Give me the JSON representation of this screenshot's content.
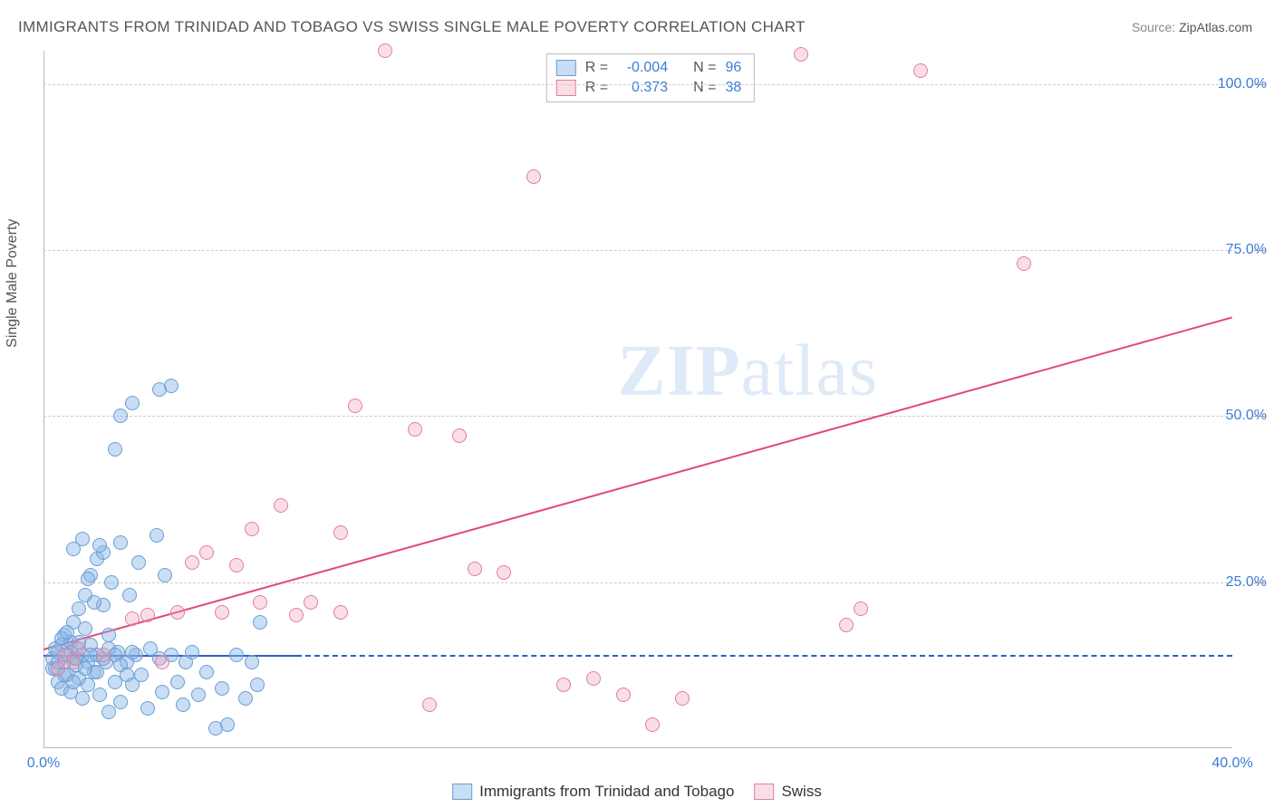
{
  "title": "IMMIGRANTS FROM TRINIDAD AND TOBAGO VS SWISS SINGLE MALE POVERTY CORRELATION CHART",
  "source_label": "Source: ",
  "source_value": "ZipAtlas.com",
  "ylabel": "Single Male Poverty",
  "watermark_a": "ZIP",
  "watermark_b": "atlas",
  "chart": {
    "type": "scatter",
    "xlim": [
      0,
      40
    ],
    "ylim": [
      0,
      105
    ],
    "y_gridlines": [
      25,
      50,
      75,
      100
    ],
    "y_tick_labels": [
      "25.0%",
      "50.0%",
      "75.0%",
      "100.0%"
    ],
    "x_ticks": [
      0,
      40
    ],
    "x_tick_labels": [
      "0.0%",
      "40.0%"
    ],
    "tick_label_color": "#3b7dd8",
    "grid_color": "#cccccc",
    "axis_color": "#bbbbbb",
    "background_color": "#ffffff"
  },
  "series": [
    {
      "name": "Immigrants from Trinidad and Tobago",
      "color_fill": "rgba(135,180,230,0.45)",
      "color_stroke": "#6a9fd4",
      "trend_color": "#2f5fbf",
      "r": "-0.004",
      "n": "96",
      "trend": {
        "x1": 0,
        "y1": 14.0,
        "x2": 8.5,
        "y2": 14.0,
        "dash_to_x": 40,
        "dash_y": 14.0
      },
      "points": [
        [
          0.3,
          13.5
        ],
        [
          0.4,
          12.0
        ],
        [
          0.5,
          14.5
        ],
        [
          0.5,
          10.0
        ],
        [
          0.6,
          15.5
        ],
        [
          0.6,
          9.0
        ],
        [
          0.7,
          13.0
        ],
        [
          0.7,
          17.0
        ],
        [
          0.8,
          14.0
        ],
        [
          0.8,
          11.0
        ],
        [
          0.9,
          16.0
        ],
        [
          0.9,
          8.5
        ],
        [
          1.0,
          13.5
        ],
        [
          1.0,
          19.0
        ],
        [
          1.1,
          12.5
        ],
        [
          1.1,
          15.0
        ],
        [
          1.2,
          10.5
        ],
        [
          1.2,
          21.0
        ],
        [
          1.3,
          14.0
        ],
        [
          1.3,
          7.5
        ],
        [
          1.4,
          18.0
        ],
        [
          1.4,
          23.0
        ],
        [
          1.5,
          13.0
        ],
        [
          1.5,
          9.5
        ],
        [
          1.6,
          26.0
        ],
        [
          1.6,
          15.5
        ],
        [
          1.7,
          11.5
        ],
        [
          1.8,
          28.5
        ],
        [
          1.8,
          14.0
        ],
        [
          1.9,
          8.0
        ],
        [
          2.0,
          29.5
        ],
        [
          2.0,
          21.5
        ],
        [
          2.1,
          13.0
        ],
        [
          2.2,
          5.5
        ],
        [
          2.2,
          17.0
        ],
        [
          2.3,
          25.0
        ],
        [
          2.4,
          10.0
        ],
        [
          2.5,
          14.5
        ],
        [
          2.6,
          31.0
        ],
        [
          2.6,
          7.0
        ],
        [
          2.8,
          13.0
        ],
        [
          2.9,
          23.0
        ],
        [
          3.0,
          9.5
        ],
        [
          3.1,
          14.0
        ],
        [
          3.2,
          28.0
        ],
        [
          3.3,
          11.0
        ],
        [
          3.5,
          6.0
        ],
        [
          3.6,
          15.0
        ],
        [
          3.8,
          32.0
        ],
        [
          3.9,
          13.5
        ],
        [
          4.0,
          8.5
        ],
        [
          4.1,
          26.0
        ],
        [
          4.3,
          14.0
        ],
        [
          2.4,
          45.0
        ],
        [
          2.6,
          50.0
        ],
        [
          3.0,
          52.0
        ],
        [
          3.9,
          54.0
        ],
        [
          4.5,
          10.0
        ],
        [
          4.7,
          6.5
        ],
        [
          4.8,
          13.0
        ],
        [
          5.0,
          14.5
        ],
        [
          5.2,
          8.0
        ],
        [
          5.5,
          11.5
        ],
        [
          5.8,
          3.0
        ],
        [
          6.0,
          9.0
        ],
        [
          6.2,
          3.5
        ],
        [
          6.5,
          14.0
        ],
        [
          6.8,
          7.5
        ],
        [
          7.0,
          13.0
        ],
        [
          7.2,
          9.5
        ],
        [
          7.3,
          19.0
        ],
        [
          4.3,
          54.5
        ],
        [
          1.0,
          30.0
        ],
        [
          1.3,
          31.5
        ],
        [
          1.5,
          25.5
        ],
        [
          1.7,
          22.0
        ],
        [
          1.9,
          30.5
        ],
        [
          0.4,
          15.0
        ],
        [
          0.3,
          12.0
        ],
        [
          0.5,
          13.0
        ],
        [
          0.6,
          16.5
        ],
        [
          0.7,
          11.0
        ],
        [
          0.8,
          17.5
        ],
        [
          0.9,
          14.5
        ],
        [
          1.0,
          10.0
        ],
        [
          1.1,
          13.5
        ],
        [
          1.2,
          16.0
        ],
        [
          1.4,
          12.0
        ],
        [
          1.6,
          14.0
        ],
        [
          1.8,
          11.5
        ],
        [
          2.0,
          13.5
        ],
        [
          2.2,
          15.0
        ],
        [
          2.4,
          14.0
        ],
        [
          2.6,
          12.5
        ],
        [
          2.8,
          11.0
        ],
        [
          3.0,
          14.5
        ]
      ]
    },
    {
      "name": "Swiss",
      "color_fill": "rgba(240,160,180,0.35)",
      "color_stroke": "#e07f9c",
      "trend_color": "#e24a78",
      "r": "0.373",
      "n": "38",
      "trend": {
        "x1": 0,
        "y1": 15.0,
        "x2": 40,
        "y2": 65.0
      },
      "points": [
        [
          0.5,
          12.0
        ],
        [
          0.7,
          14.0
        ],
        [
          1.0,
          13.0
        ],
        [
          1.2,
          15.0
        ],
        [
          2.0,
          14.0
        ],
        [
          3.0,
          19.5
        ],
        [
          3.5,
          20.0
        ],
        [
          4.0,
          13.0
        ],
        [
          4.5,
          20.5
        ],
        [
          5.0,
          28.0
        ],
        [
          5.5,
          29.5
        ],
        [
          6.0,
          20.5
        ],
        [
          6.5,
          27.5
        ],
        [
          7.0,
          33.0
        ],
        [
          7.3,
          22.0
        ],
        [
          8.0,
          36.5
        ],
        [
          8.5,
          20.0
        ],
        [
          9.0,
          22.0
        ],
        [
          10.0,
          20.5
        ],
        [
          10.0,
          32.5
        ],
        [
          10.5,
          51.5
        ],
        [
          11.5,
          105.0
        ],
        [
          12.5,
          48.0
        ],
        [
          13.0,
          6.5
        ],
        [
          14.0,
          47.0
        ],
        [
          14.5,
          27.0
        ],
        [
          15.5,
          26.5
        ],
        [
          16.5,
          86.0
        ],
        [
          17.5,
          9.5
        ],
        [
          18.5,
          10.5
        ],
        [
          19.5,
          8.0
        ],
        [
          20.5,
          3.5
        ],
        [
          21.5,
          7.5
        ],
        [
          25.5,
          104.5
        ],
        [
          27.0,
          18.5
        ],
        [
          29.5,
          102.0
        ],
        [
          33.0,
          73.0
        ],
        [
          27.5,
          21.0
        ]
      ]
    }
  ],
  "legend_top": {
    "r_label": "R =",
    "n_label": "N ="
  },
  "legend_bottom": {
    "items": [
      "Immigrants from Trinidad and Tobago",
      "Swiss"
    ]
  }
}
